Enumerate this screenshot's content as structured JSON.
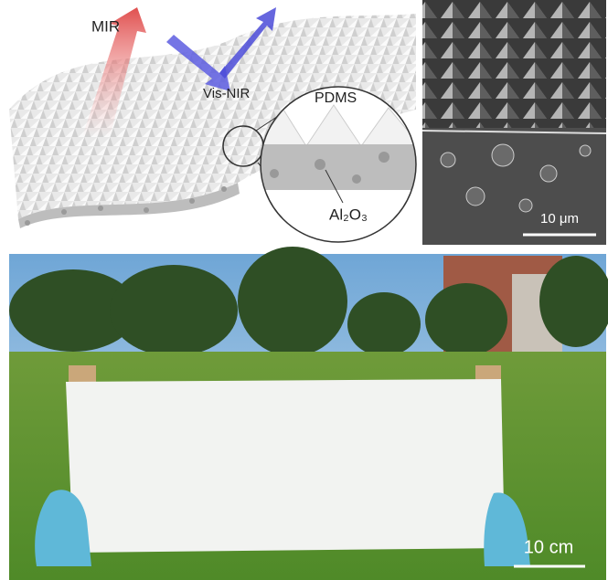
{
  "schematic": {
    "labels": {
      "mir": "MIR",
      "vis_nir": "Vis-NIR",
      "pdms": "PDMS",
      "al2o3": "Al₂O₃"
    }
  },
  "sem": {
    "scale_bar": "10 μm"
  },
  "photo": {
    "scale_bar": "10 cm"
  }
}
